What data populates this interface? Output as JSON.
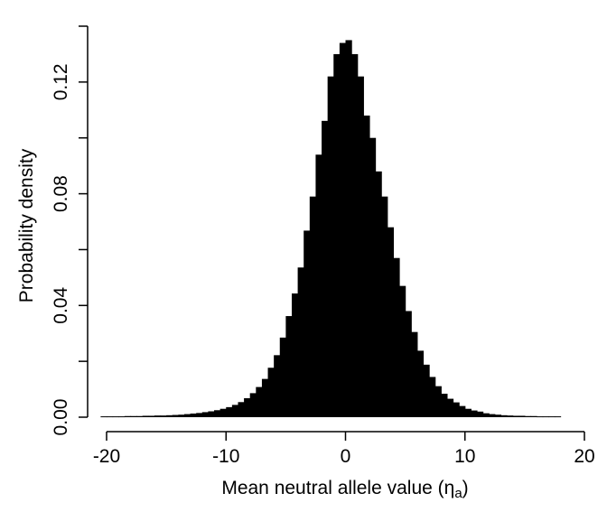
{
  "chart_data": {
    "type": "bar",
    "title": "",
    "xlabel": "Mean neutral allele value (",
    "xlabel_symbol": "η",
    "xlabel_subscript": "a",
    "xlabel_close": ")",
    "ylabel": "Probability density",
    "xlim": [
      -20,
      20
    ],
    "ylim": [
      0,
      0.14
    ],
    "x_ticks": [
      -20,
      -10,
      0,
      10,
      20
    ],
    "x_tick_labels": [
      "-20",
      "-10",
      "0",
      "10",
      "20"
    ],
    "y_ticks": [
      0,
      0.02,
      0.04,
      0.06,
      0.08,
      0.1,
      0.12,
      0.14
    ],
    "y_tick_labels": [
      "0.00",
      "",
      "0.04",
      "",
      "0.08",
      "",
      "0.12",
      ""
    ],
    "bin_width": 0.5,
    "x": [
      -20.25,
      -19.75,
      -19.25,
      -18.75,
      -18.25,
      -17.75,
      -17.25,
      -16.75,
      -16.25,
      -15.75,
      -15.25,
      -14.75,
      -14.25,
      -13.75,
      -13.25,
      -12.75,
      -12.25,
      -11.75,
      -11.25,
      -10.75,
      -10.25,
      -9.75,
      -9.25,
      -8.75,
      -8.25,
      -7.75,
      -7.25,
      -6.75,
      -6.25,
      -5.75,
      -5.25,
      -4.75,
      -4.25,
      -3.75,
      -3.25,
      -2.75,
      -2.25,
      -1.75,
      -1.25,
      -0.75,
      -0.25,
      0.25,
      0.75,
      1.25,
      1.75,
      2.25,
      2.75,
      3.25,
      3.75,
      4.25,
      4.75,
      5.25,
      5.75,
      6.25,
      6.75,
      7.25,
      7.75,
      8.25,
      8.75,
      9.25,
      9.75,
      10.25,
      10.75,
      11.25,
      11.75,
      12.25,
      12.75,
      13.25,
      13.75,
      14.25,
      14.75,
      15.25,
      15.75,
      16.25,
      16.75,
      17.25,
      17.75
    ],
    "values": [
      0.0003,
      0.0003,
      0.0003,
      0.0003,
      0.0004,
      0.0004,
      0.0004,
      0.0005,
      0.0005,
      0.0006,
      0.0006,
      0.0007,
      0.0008,
      0.0009,
      0.0011,
      0.0013,
      0.0015,
      0.0018,
      0.0021,
      0.0025,
      0.003,
      0.0036,
      0.0044,
      0.0054,
      0.0068,
      0.0086,
      0.0108,
      0.0137,
      0.0177,
      0.0222,
      0.0285,
      0.0362,
      0.0443,
      0.0536,
      0.0668,
      0.079,
      0.094,
      0.1061,
      0.122,
      0.13,
      0.134,
      0.135,
      0.13,
      0.122,
      0.108,
      0.1,
      0.088,
      0.079,
      0.068,
      0.057,
      0.047,
      0.038,
      0.0305,
      0.0238,
      0.0188,
      0.0144,
      0.0111,
      0.0084,
      0.0066,
      0.0053,
      0.004,
      0.003,
      0.0024,
      0.002,
      0.0014,
      0.0011,
      0.0009,
      0.0007,
      0.0006,
      0.0005,
      0.0005,
      0.0004,
      0.0004,
      0.0003,
      0.0003,
      0.0003,
      0.0003
    ],
    "bar_color": "#000000",
    "grid": false,
    "legend": "none"
  }
}
